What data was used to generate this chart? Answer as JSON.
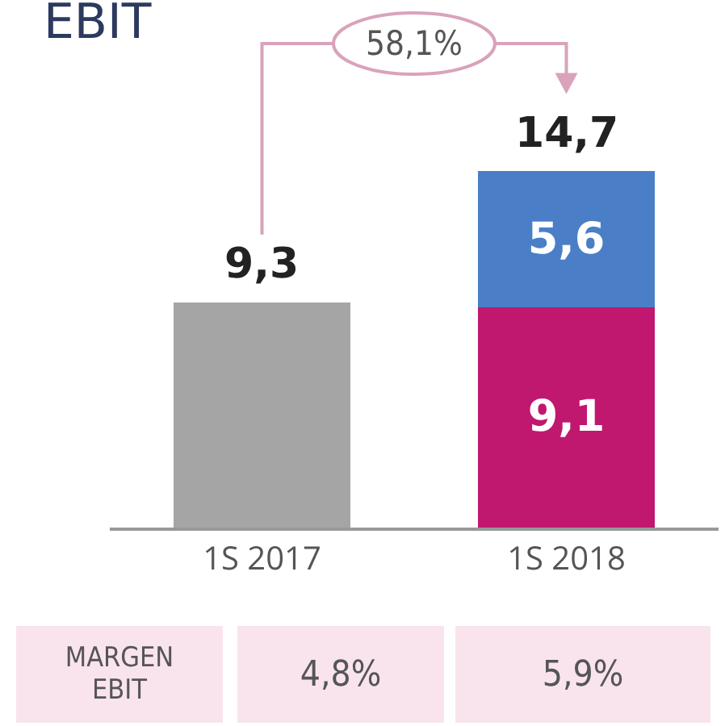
{
  "chart_data": {
    "type": "bar",
    "title": "EBIT",
    "stacked": true,
    "categories": [
      "1S 2017",
      "1S 2018"
    ],
    "series": [
      {
        "colors": [
          "#a5a5a5",
          "#c0186f"
        ],
        "values": [
          9.3,
          9.1
        ],
        "value_labels": [
          null,
          "9,1"
        ]
      },
      {
        "color": "#4a7fc8",
        "values": [
          null,
          5.6
        ],
        "value_labels": [
          null,
          "5,6"
        ]
      }
    ],
    "totals": [
      "9,3",
      "14,7"
    ],
    "annotations": [
      "58,1%",
      "MARGEN EBIT",
      "4,8%",
      "5,9%"
    ]
  }
}
